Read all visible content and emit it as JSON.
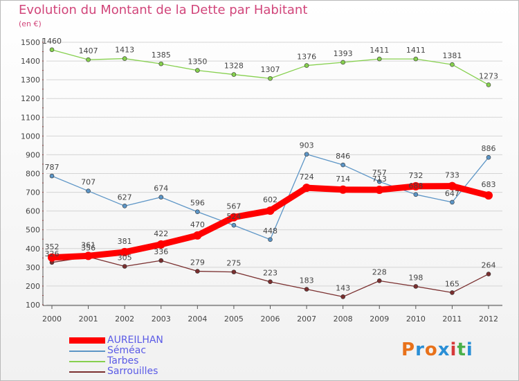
{
  "title": "Evolution du Montant de la Dette par Habitant",
  "subtitle": "(en €)",
  "logo": {
    "text": "Proxiti",
    "colors": [
      "#e8711a",
      "#2a8fd6",
      "#e8711a",
      "#2a8fd6",
      "#d63a3a",
      "#4ab04a",
      "#2a8fd6"
    ]
  },
  "chart_data": {
    "type": "line",
    "title": "Evolution du Montant de la Dette par Habitant",
    "ylabel": "(en €)",
    "x": [
      "2000",
      "2001",
      "2002",
      "2003",
      "2004",
      "2005",
      "2006",
      "2007",
      "2008",
      "2009",
      "2010",
      "2011",
      "2012"
    ],
    "yticks": [
      "1500",
      "1400",
      "1300",
      "1200",
      "1100",
      "1000",
      "900",
      "800",
      "700",
      "600",
      "500",
      "400",
      "300",
      "200",
      "100"
    ],
    "ylim": [
      100,
      1500
    ],
    "grid": "horizontal",
    "legend_position": "bottom-left",
    "series": [
      {
        "name": "AUREILHAN",
        "color": "#ff0000",
        "values": [
          352,
          361,
          381,
          422,
          470,
          567,
          602,
          724,
          714,
          713,
          732,
          733,
          683
        ]
      },
      {
        "name": "Séméac",
        "color": "#5c95c6",
        "values": [
          787,
          707,
          627,
          674,
          596,
          524,
          448,
          903,
          846,
          757,
          688,
          647,
          886
        ]
      },
      {
        "name": "Tarbes",
        "color": "#86d04e",
        "values": [
          1460,
          1407,
          1413,
          1385,
          1350,
          1328,
          1307,
          1376,
          1393,
          1411,
          1411,
          1381,
          1273
        ]
      },
      {
        "name": "Sarrouilles",
        "color": "#7a2f2f",
        "values": [
          326,
          356,
          305,
          336,
          279,
          275,
          223,
          183,
          143,
          228,
          198,
          165,
          264
        ]
      }
    ]
  }
}
